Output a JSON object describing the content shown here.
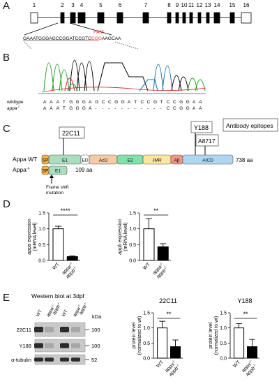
{
  "panels": {
    "a": "A",
    "b": "B",
    "c": "C",
    "d": "D",
    "e": "E"
  },
  "gene_a": {
    "exons": [
      "1",
      "2",
      "3",
      "4",
      "5",
      "6",
      "7",
      "8",
      "9",
      "10",
      "11",
      "12",
      "13",
      "14",
      "15",
      "16"
    ],
    "seq_prefix": "GAAATGGGAGCCGGATCCGTC",
    "seq_pam": "CGG",
    "seq_suffix": "AAGCAA",
    "pam_label": "PAM",
    "colors": {
      "pam": "#e03030",
      "exon": "#000000"
    }
  },
  "chromatogram": {
    "wildtype_label": "wildtype",
    "mutant_label": "appa",
    "mutant_superscript": "-/-",
    "wt_seq": [
      "A",
      "A",
      "A",
      "T",
      "G",
      "G",
      "G",
      "A",
      "G",
      "C",
      "C",
      "G",
      "G",
      "A",
      "T",
      "C",
      "C",
      "G",
      "T",
      "C",
      "C",
      "G",
      "G",
      "A",
      "A"
    ],
    "mut_seq": [
      "A",
      "A",
      "A",
      "T",
      "G",
      "G",
      "G",
      "A",
      "-",
      "-",
      "-",
      "-",
      "-",
      "-",
      "-",
      "-",
      "-",
      "-",
      "-",
      "C",
      "C",
      "G",
      "G",
      "A",
      "A"
    ],
    "trace_colors": {
      "A": "#2ca02c",
      "T": "#d62728",
      "G": "#111111",
      "C": "#1f77b4"
    }
  },
  "protein": {
    "epitope_box": "Antibody epitopes",
    "epitopes": [
      "22C11",
      "Y188",
      "A8717"
    ],
    "wt_label": "Appa WT",
    "mut_label": "Appa",
    "mut_sup": "-/-",
    "wt_length": "738 aa",
    "mut_length": "109 aa",
    "domains": [
      {
        "name": "SP",
        "color": "#f5b041"
      },
      {
        "name": "E1",
        "color": "#a9dfbf"
      },
      {
        "name": "ED",
        "color": "#ffffff"
      },
      {
        "name": "AcD",
        "color": "#f5cba7"
      },
      {
        "name": "E2",
        "color": "#82e0aa"
      },
      {
        "name": "JMR",
        "color": "#f9e79f"
      },
      {
        "name": "Aβ",
        "color": "#f1948a"
      },
      {
        "name": "AICD",
        "color": "#aed6f1"
      }
    ],
    "mut_domains": [
      {
        "name": "SP",
        "color": "#f5b041"
      },
      {
        "name": "E1",
        "color": "#a9dfbf"
      }
    ],
    "frameshift_label": "Frame shift\nmutation"
  },
  "panel_d": {
    "charts": [
      {
        "ylabel_italic": "appa",
        "ylabel_rest": " expression",
        "ylabel_sub": "(mRNA level)",
        "significance": "****",
        "categories": [
          "WT",
          "appa-/- appb-/-"
        ],
        "values": [
          1.0,
          0.12
        ],
        "errors": [
          0.08,
          0.02
        ],
        "yticks": [
          "0.0",
          "0.5",
          "1.0",
          "1.5"
        ],
        "ylim": [
          0,
          1.5
        ]
      },
      {
        "ylabel_italic": "appb",
        "ylabel_rest": " expression",
        "ylabel_sub": "(mRNA level)",
        "significance": "**",
        "categories": [
          "WT",
          "appa-/- appb-/-"
        ],
        "values": [
          1.0,
          0.43
        ],
        "errors": [
          0.32,
          0.1
        ],
        "yticks": [
          "0.0",
          "0.5",
          "1.0",
          "1.5"
        ],
        "ylim": [
          0,
          1.5
        ]
      }
    ]
  },
  "panel_e": {
    "blot_title": "Western blot at 3dpf",
    "lanes": [
      "WT",
      "appa-/- appb-/-",
      "WT",
      "appa-/- appb-/-"
    ],
    "kda_label": "kDa",
    "rows": [
      {
        "name": "22C11",
        "kda": "100"
      },
      {
        "name": "Y188",
        "kda": "100"
      },
      {
        "name": "α-tubulin",
        "kda": "52"
      }
    ],
    "charts": [
      {
        "title": "22C11",
        "ylabel": "protein level",
        "ylabel_sub": "(normalized to wt)",
        "significance": "**",
        "categories": [
          "WT",
          "appa-/- appb-/-"
        ],
        "values": [
          1.0,
          0.38
        ],
        "errors": [
          0.22,
          0.22
        ],
        "yticks": [
          "0.0",
          "0.5",
          "1.0",
          "1.5"
        ],
        "ylim": [
          0,
          1.5
        ]
      },
      {
        "title": "Y188",
        "ylabel": "protein level",
        "ylabel_sub": "(normalized to wt)",
        "significance": "**",
        "categories": [
          "WT",
          "appa-/- appb-/-"
        ],
        "values": [
          1.0,
          0.38
        ],
        "errors": [
          0.14,
          0.24
        ],
        "yticks": [
          "0.0",
          "0.5",
          "1.0",
          "1.5"
        ],
        "ylim": [
          0,
          1.5
        ]
      }
    ]
  },
  "chart_data": [
    {
      "type": "bar",
      "categories": [
        "WT",
        "appa-/- appb-/-"
      ],
      "series": [
        {
          "values": [
            1.0,
            0.12
          ]
        }
      ],
      "errors": [
        0.08,
        0.02
      ],
      "ylabel": "appa expression (mRNA level)",
      "ylim": [
        0,
        1.5
      ],
      "annotations": [
        "****"
      ]
    },
    {
      "type": "bar",
      "categories": [
        "WT",
        "appa-/- appb-/-"
      ],
      "series": [
        {
          "values": [
            1.0,
            0.43
          ]
        }
      ],
      "errors": [
        0.32,
        0.1
      ],
      "ylabel": "appb expression (mRNA level)",
      "ylim": [
        0,
        1.5
      ],
      "annotations": [
        "**"
      ]
    },
    {
      "type": "bar",
      "title": "22C11",
      "categories": [
        "WT",
        "appa-/- appb-/-"
      ],
      "series": [
        {
          "values": [
            1.0,
            0.38
          ]
        }
      ],
      "errors": [
        0.22,
        0.22
      ],
      "ylabel": "protein level (normalized to wt)",
      "ylim": [
        0,
        1.5
      ],
      "annotations": [
        "**"
      ]
    },
    {
      "type": "bar",
      "title": "Y188",
      "categories": [
        "WT",
        "appa-/- appb-/-"
      ],
      "series": [
        {
          "values": [
            1.0,
            0.38
          ]
        }
      ],
      "errors": [
        0.14,
        0.24
      ],
      "ylabel": "protein level (normalized to wt)",
      "ylim": [
        0,
        1.5
      ],
      "annotations": [
        "**"
      ]
    }
  ]
}
